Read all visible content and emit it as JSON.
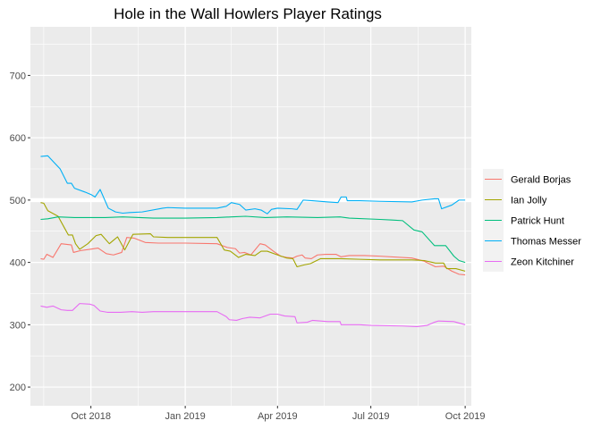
{
  "chart_data": {
    "type": "line",
    "title": "Hole in the Wall Howlers Player Ratings",
    "xlabel": "",
    "ylabel": "",
    "xlim": [
      "2018-08-03",
      "2019-10-07"
    ],
    "ylim": [
      170,
      778
    ],
    "x_ticks": [
      {
        "date": "2018-10-01",
        "label": "Oct 2018"
      },
      {
        "date": "2019-01-01",
        "label": "Jan 2019"
      },
      {
        "date": "2019-04-01",
        "label": "Apr 2019"
      },
      {
        "date": "2019-07-01",
        "label": "Jul 2019"
      },
      {
        "date": "2019-10-01",
        "label": "Oct 2019"
      }
    ],
    "y_ticks": [
      200,
      300,
      400,
      500,
      600,
      700
    ],
    "grid": true,
    "legend_position": "right",
    "reference_line": {
      "y": 500,
      "color": "#ffffff"
    },
    "series": [
      {
        "name": "Gerald Borjas",
        "color": "#F8766D",
        "points": [
          [
            "2018-08-13",
            406
          ],
          [
            "2018-08-16",
            405
          ],
          [
            "2018-08-19",
            413
          ],
          [
            "2018-08-25",
            408
          ],
          [
            "2018-09-02",
            430
          ],
          [
            "2018-09-12",
            428
          ],
          [
            "2018-09-14",
            416
          ],
          [
            "2018-09-21",
            419
          ],
          [
            "2018-09-30",
            421
          ],
          [
            "2018-10-08",
            423
          ],
          [
            "2018-10-16",
            414
          ],
          [
            "2018-10-23",
            412
          ],
          [
            "2018-10-31",
            416
          ],
          [
            "2018-11-05",
            440
          ],
          [
            "2018-11-12",
            439
          ],
          [
            "2018-11-23",
            432
          ],
          [
            "2018-12-06",
            431
          ],
          [
            "2019-01-01",
            431
          ],
          [
            "2019-02-01",
            430
          ],
          [
            "2019-02-11",
            424
          ],
          [
            "2019-02-19",
            422
          ],
          [
            "2019-02-23",
            415
          ],
          [
            "2019-02-28",
            416
          ],
          [
            "2019-03-06",
            412
          ],
          [
            "2019-03-15",
            430
          ],
          [
            "2019-03-20",
            428
          ],
          [
            "2019-03-28",
            418
          ],
          [
            "2019-04-04",
            410
          ],
          [
            "2019-04-10",
            408
          ],
          [
            "2019-04-16",
            407
          ],
          [
            "2019-04-20",
            410
          ],
          [
            "2019-04-25",
            412
          ],
          [
            "2019-04-28",
            407
          ],
          [
            "2019-05-04",
            406
          ],
          [
            "2019-05-10",
            412
          ],
          [
            "2019-05-18",
            413
          ],
          [
            "2019-05-28",
            413
          ],
          [
            "2019-06-02",
            409
          ],
          [
            "2019-06-10",
            411
          ],
          [
            "2019-06-25",
            411
          ],
          [
            "2019-07-10",
            410
          ],
          [
            "2019-08-10",
            407
          ],
          [
            "2019-08-22",
            402
          ],
          [
            "2019-09-02",
            393
          ],
          [
            "2019-09-10",
            394
          ],
          [
            "2019-09-18",
            386
          ],
          [
            "2019-09-25",
            381
          ],
          [
            "2019-10-01",
            380
          ]
        ]
      },
      {
        "name": "Ian Jolly",
        "color": "#A3A500",
        "points": [
          [
            "2018-08-13",
            496
          ],
          [
            "2018-08-16",
            495
          ],
          [
            "2018-08-20",
            483
          ],
          [
            "2018-08-30",
            474
          ],
          [
            "2018-09-05",
            456
          ],
          [
            "2018-09-09",
            444
          ],
          [
            "2018-09-13",
            444
          ],
          [
            "2018-09-16",
            430
          ],
          [
            "2018-09-20",
            421
          ],
          [
            "2018-09-28",
            430
          ],
          [
            "2018-10-06",
            443
          ],
          [
            "2018-10-11",
            445
          ],
          [
            "2018-10-19",
            430
          ],
          [
            "2018-10-27",
            441
          ],
          [
            "2018-11-03",
            420
          ],
          [
            "2018-11-11",
            445
          ],
          [
            "2018-11-28",
            446
          ],
          [
            "2018-12-01",
            441
          ],
          [
            "2018-12-15",
            440
          ],
          [
            "2019-01-01",
            440
          ],
          [
            "2019-02-01",
            440
          ],
          [
            "2019-02-08",
            420
          ],
          [
            "2019-02-14",
            418
          ],
          [
            "2019-02-22",
            408
          ],
          [
            "2019-03-01",
            413
          ],
          [
            "2019-03-10",
            411
          ],
          [
            "2019-03-16",
            418
          ],
          [
            "2019-03-22",
            418
          ],
          [
            "2019-04-01",
            412
          ],
          [
            "2019-04-10",
            407
          ],
          [
            "2019-04-16",
            406
          ],
          [
            "2019-04-20",
            393
          ],
          [
            "2019-04-27",
            396
          ],
          [
            "2019-05-03",
            398
          ],
          [
            "2019-05-13",
            406
          ],
          [
            "2019-06-01",
            406
          ],
          [
            "2019-06-20",
            405
          ],
          [
            "2019-07-10",
            404
          ],
          [
            "2019-08-10",
            404
          ],
          [
            "2019-08-22",
            403
          ],
          [
            "2019-09-02",
            399
          ],
          [
            "2019-09-10",
            399
          ],
          [
            "2019-09-13",
            390
          ],
          [
            "2019-09-22",
            390
          ],
          [
            "2019-10-01",
            386
          ]
        ]
      },
      {
        "name": "Patrick Hunt",
        "color": "#00BF7D",
        "points": [
          [
            "2018-08-13",
            469
          ],
          [
            "2018-08-20",
            470
          ],
          [
            "2018-08-30",
            473
          ],
          [
            "2018-09-15",
            472
          ],
          [
            "2018-10-01",
            472
          ],
          [
            "2018-10-15",
            472
          ],
          [
            "2018-11-01",
            473
          ],
          [
            "2018-12-01",
            471
          ],
          [
            "2019-01-01",
            471
          ],
          [
            "2019-02-01",
            472
          ],
          [
            "2019-02-15",
            473
          ],
          [
            "2019-03-01",
            474
          ],
          [
            "2019-03-20",
            472
          ],
          [
            "2019-04-10",
            473
          ],
          [
            "2019-05-10",
            472
          ],
          [
            "2019-06-01",
            473
          ],
          [
            "2019-06-10",
            471
          ],
          [
            "2019-07-10",
            469
          ],
          [
            "2019-07-22",
            468
          ],
          [
            "2019-08-01",
            467
          ],
          [
            "2019-08-12",
            452
          ],
          [
            "2019-08-20",
            449
          ],
          [
            "2019-09-01",
            427
          ],
          [
            "2019-09-12",
            427
          ],
          [
            "2019-09-20",
            410
          ],
          [
            "2019-09-25",
            403
          ],
          [
            "2019-10-01",
            400
          ]
        ]
      },
      {
        "name": "Thomas Messer",
        "color": "#00B0F6",
        "points": [
          [
            "2018-08-13",
            570
          ],
          [
            "2018-08-20",
            571
          ],
          [
            "2018-09-01",
            550
          ],
          [
            "2018-09-08",
            527
          ],
          [
            "2018-09-12",
            527
          ],
          [
            "2018-09-15",
            519
          ],
          [
            "2018-09-25",
            513
          ],
          [
            "2018-10-01",
            509
          ],
          [
            "2018-10-05",
            505
          ],
          [
            "2018-10-10",
            517
          ],
          [
            "2018-10-18",
            487
          ],
          [
            "2018-10-25",
            481
          ],
          [
            "2018-11-01",
            479
          ],
          [
            "2018-11-08",
            480
          ],
          [
            "2018-11-20",
            481
          ],
          [
            "2018-12-10",
            487
          ],
          [
            "2018-12-15",
            488
          ],
          [
            "2019-01-01",
            487
          ],
          [
            "2019-02-01",
            487
          ],
          [
            "2019-02-10",
            490
          ],
          [
            "2019-02-15",
            496
          ],
          [
            "2019-02-23",
            493
          ],
          [
            "2019-03-01",
            484
          ],
          [
            "2019-03-10",
            486
          ],
          [
            "2019-03-16",
            484
          ],
          [
            "2019-03-22",
            478
          ],
          [
            "2019-03-26",
            485
          ],
          [
            "2019-04-01",
            487
          ],
          [
            "2019-04-15",
            486
          ],
          [
            "2019-04-20",
            485
          ],
          [
            "2019-04-26",
            500
          ],
          [
            "2019-05-05",
            499
          ],
          [
            "2019-05-20",
            497
          ],
          [
            "2019-05-30",
            496
          ],
          [
            "2019-06-02",
            505
          ],
          [
            "2019-06-07",
            505
          ],
          [
            "2019-06-08",
            499
          ],
          [
            "2019-06-20",
            499
          ],
          [
            "2019-07-10",
            498
          ],
          [
            "2019-08-10",
            497
          ],
          [
            "2019-08-20",
            500
          ],
          [
            "2019-09-01",
            502
          ],
          [
            "2019-09-05",
            502
          ],
          [
            "2019-09-08",
            486
          ],
          [
            "2019-09-18",
            492
          ],
          [
            "2019-09-25",
            500
          ],
          [
            "2019-10-01",
            500
          ]
        ]
      },
      {
        "name": "Zeon Kitchiner",
        "color": "#E76BF3",
        "points": [
          [
            "2018-08-13",
            330
          ],
          [
            "2018-08-19",
            328
          ],
          [
            "2018-08-25",
            330
          ],
          [
            "2018-09-02",
            324
          ],
          [
            "2018-09-08",
            323
          ],
          [
            "2018-09-13",
            323
          ],
          [
            "2018-09-20",
            334
          ],
          [
            "2018-09-30",
            333
          ],
          [
            "2018-10-04",
            331
          ],
          [
            "2018-10-10",
            322
          ],
          [
            "2018-10-17",
            320
          ],
          [
            "2018-10-30",
            320
          ],
          [
            "2018-11-10",
            321
          ],
          [
            "2018-11-20",
            320
          ],
          [
            "2018-12-01",
            321
          ],
          [
            "2019-01-01",
            321
          ],
          [
            "2019-02-01",
            321
          ],
          [
            "2019-02-10",
            313
          ],
          [
            "2019-02-13",
            308
          ],
          [
            "2019-02-20",
            307
          ],
          [
            "2019-02-26",
            310
          ],
          [
            "2019-03-05",
            312
          ],
          [
            "2019-03-15",
            311
          ],
          [
            "2019-03-25",
            317
          ],
          [
            "2019-04-01",
            317
          ],
          [
            "2019-04-08",
            314
          ],
          [
            "2019-04-18",
            313
          ],
          [
            "2019-04-20",
            303
          ],
          [
            "2019-04-30",
            304
          ],
          [
            "2019-05-05",
            307
          ],
          [
            "2019-05-20",
            305
          ],
          [
            "2019-06-01",
            305
          ],
          [
            "2019-06-02",
            300
          ],
          [
            "2019-06-20",
            300
          ],
          [
            "2019-07-01",
            299
          ],
          [
            "2019-08-01",
            298
          ],
          [
            "2019-08-15",
            297
          ],
          [
            "2019-08-25",
            299
          ],
          [
            "2019-09-01",
            304
          ],
          [
            "2019-09-05",
            306
          ],
          [
            "2019-09-20",
            305
          ],
          [
            "2019-10-01",
            300
          ]
        ]
      }
    ]
  }
}
